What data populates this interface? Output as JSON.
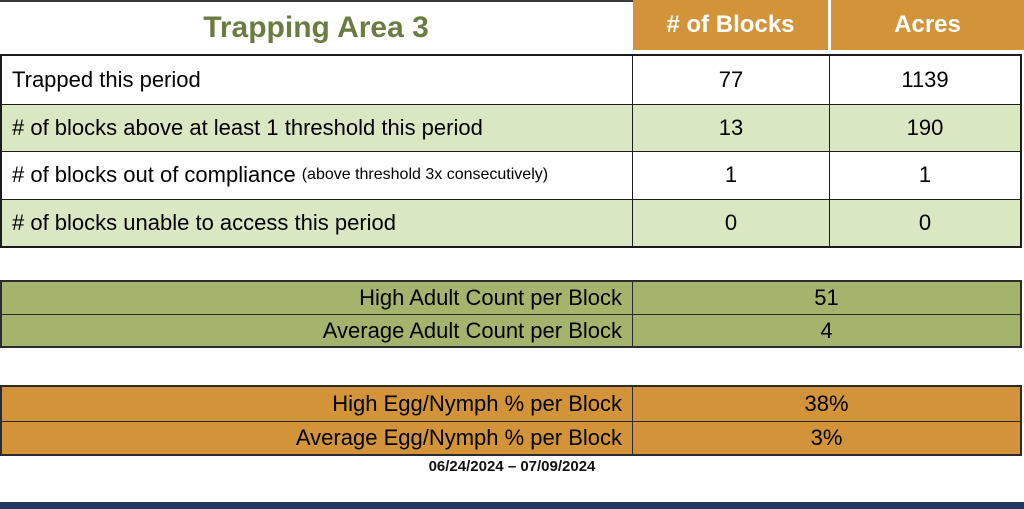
{
  "title": "Trapping Area 3",
  "main_table": {
    "columns": {
      "blocks": "# of Blocks",
      "acres": "Acres"
    },
    "rows": [
      {
        "label": "Trapped this period",
        "note": "",
        "blocks": "77",
        "acres": "1139"
      },
      {
        "label": "# of blocks above at least 1 threshold this period",
        "note": "",
        "blocks": "13",
        "acres": "190"
      },
      {
        "label": "# of blocks out of compliance",
        "note": "(above threshold 3x consecutively)",
        "blocks": "1",
        "acres": "1"
      },
      {
        "label": "# of blocks unable to access this period",
        "note": "",
        "blocks": "0",
        "acres": "0"
      }
    ]
  },
  "adult_table": {
    "rows": [
      {
        "label": "High Adult Count per Block",
        "value": "51"
      },
      {
        "label": "Average Adult Count per Block",
        "value": "4"
      }
    ]
  },
  "egg_table": {
    "rows": [
      {
        "label": "High Egg/Nymph % per Block",
        "value": "38%"
      },
      {
        "label": "Average Egg/Nymph % per Block",
        "value": "3%"
      }
    ]
  },
  "footer": {
    "date_range": "06/24/2024 – 07/09/2024"
  },
  "colors": {
    "header_orange": "#D39439",
    "row_green": "#D9E7C2",
    "section_olive": "#A4B46C",
    "title_green": "#6A7C42",
    "accent_navy": "#1F3864"
  }
}
